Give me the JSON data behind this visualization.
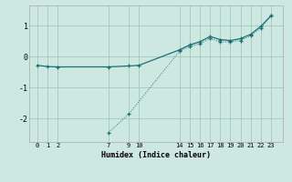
{
  "xlabel": "Humidex (Indice chaleur)",
  "background_color": "#cce8e0",
  "line_color": "#1a7070",
  "grid_color": "#aaccc4",
  "line1": {
    "x": [
      0,
      1,
      2,
      7,
      9,
      10,
      14,
      15,
      16,
      17,
      18,
      19,
      20,
      21,
      22,
      23
    ],
    "y": [
      -0.28,
      -0.32,
      -0.33,
      -0.33,
      -0.3,
      -0.28,
      0.22,
      0.38,
      0.48,
      0.65,
      0.55,
      0.52,
      0.58,
      0.72,
      0.98,
      1.32
    ]
  },
  "line2": {
    "x": [
      7,
      9,
      14,
      15,
      16,
      17,
      18,
      19,
      20,
      21,
      22,
      23
    ],
    "y": [
      -2.45,
      -1.85,
      0.18,
      0.32,
      0.42,
      0.58,
      0.48,
      0.48,
      0.52,
      0.68,
      0.92,
      1.32
    ]
  },
  "xticks": [
    0,
    1,
    2,
    7,
    9,
    10,
    14,
    15,
    16,
    17,
    18,
    19,
    20,
    21,
    22,
    23
  ],
  "yticks": [
    -2,
    -1,
    0,
    1
  ],
  "xlim": [
    -0.8,
    24.2
  ],
  "ylim": [
    -2.75,
    1.65
  ]
}
